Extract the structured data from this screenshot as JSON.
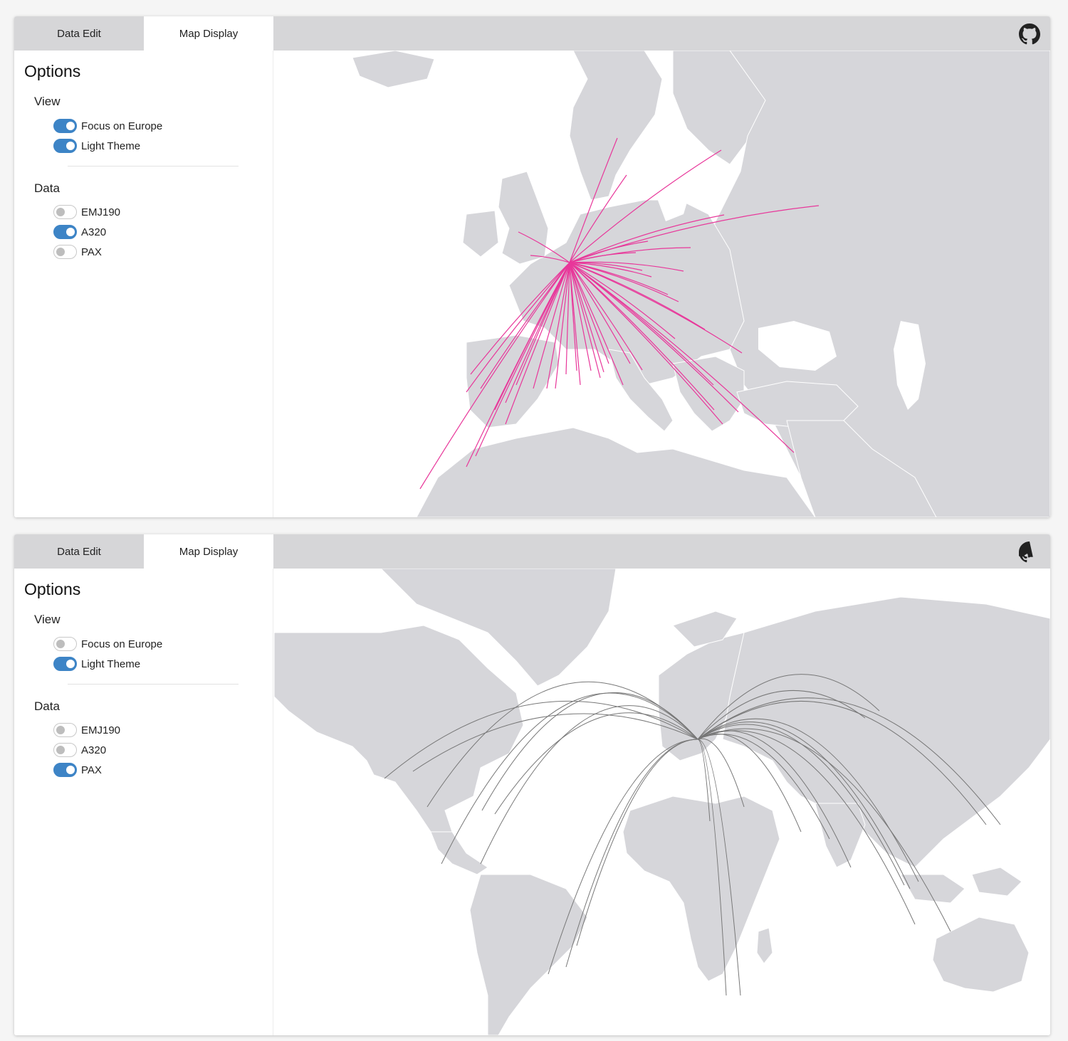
{
  "colors": {
    "accent": "#3d84c6",
    "tabbar": "#d6d6d8",
    "land": "#d6d6da",
    "route_a320": "#e8379a",
    "route_pax": "#777777"
  },
  "panels": [
    {
      "tabs": [
        {
          "label": "Data Edit"
        },
        {
          "label": "Map Display"
        }
      ],
      "active_tab": "Map Display",
      "github_icon": "github-icon",
      "options": {
        "title": "Options",
        "view": {
          "title": "View",
          "toggles": [
            {
              "label": "Focus on Europe",
              "on": true
            },
            {
              "label": "Light Theme",
              "on": true
            }
          ]
        },
        "data": {
          "title": "Data",
          "toggles": [
            {
              "label": "EMJ190",
              "on": false
            },
            {
              "label": "A320",
              "on": true
            },
            {
              "label": "PAX",
              "on": false
            }
          ]
        }
      }
    },
    {
      "tabs": [
        {
          "label": "Data Edit"
        },
        {
          "label": "Map Display"
        }
      ],
      "active_tab": "Map Display",
      "github_icon": "github-icon",
      "options": {
        "title": "Options",
        "view": {
          "title": "View",
          "toggles": [
            {
              "label": "Focus on Europe",
              "on": false
            },
            {
              "label": "Light Theme",
              "on": true
            }
          ]
        },
        "data": {
          "title": "Data",
          "toggles": [
            {
              "label": "EMJ190",
              "on": false
            },
            {
              "label": "A320",
              "on": false
            },
            {
              "label": "PAX",
              "on": true
            }
          ]
        }
      }
    }
  ]
}
